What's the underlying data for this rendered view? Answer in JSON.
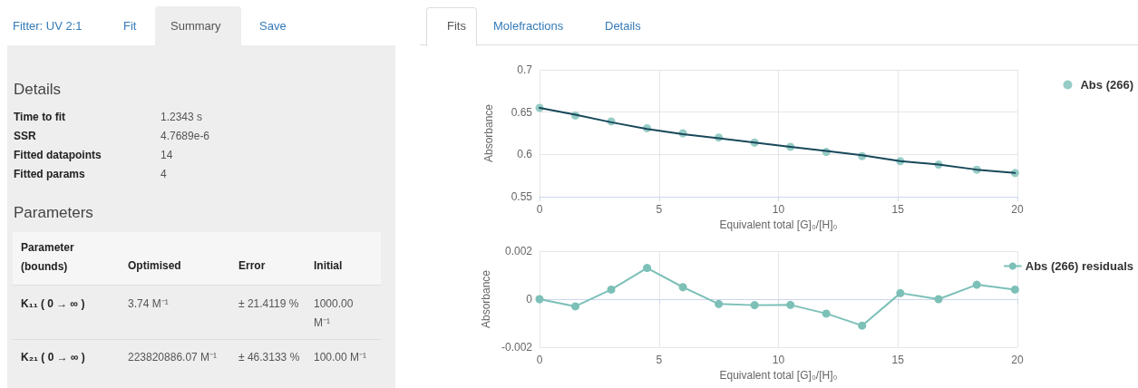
{
  "chart_data": [
    {
      "type": "other",
      "annotations": [
        "Fitter: UV 2:1",
        "Fit",
        "Summary",
        "Save",
        "Details",
        "Time to fit",
        "1.2343 s",
        "SSR",
        "4.7689e-6",
        "Fitted datapoints",
        "14",
        "Fitted params",
        "4",
        "Parameters",
        "Parameter (bounds)",
        "Optimised",
        "Error",
        "Initial",
        "K₁₁ ( 0 → ∞ )",
        "3.74 M⁻¹",
        "± 21.4119 %",
        "1000.00 M⁻¹",
        "K₂₁ ( 0 → ∞ )",
        "223820886.07 M⁻¹",
        "± 46.3133 %",
        "100.00 M⁻¹"
      ]
    },
    {
      "type": "other",
      "annotations": [
        "Fits",
        "Molefractions",
        "Details"
      ]
    },
    {
      "type": "scatter",
      "xlabel": "Equivalent total [G]₀/[H]₀",
      "ylabel": "Absorbance",
      "x": [
        0,
        1.5,
        3,
        4.5,
        6,
        7.5,
        9,
        10.5,
        12,
        13.5,
        15.1,
        16.7,
        18.3,
        19.9
      ],
      "xlim": [
        0,
        20
      ],
      "xticks": [
        0,
        5,
        10,
        15,
        20
      ],
      "ylim": [
        0.55,
        0.7
      ],
      "yticks": [
        0.55,
        0.6,
        0.65,
        0.7
      ],
      "grid": true,
      "legend": "top right",
      "marker": "circle",
      "series": [
        {
          "name": "Abs (266)",
          "color": "#7cc0b8",
          "values": [
            0.655,
            0.646,
            0.639,
            0.631,
            0.625,
            0.62,
            0.614,
            0.609,
            0.603,
            0.598,
            0.592,
            0.588,
            0.582,
            0.578
          ]
        },
        {
          "type": "line",
          "marker": "none",
          "color": "#18485a",
          "values": [
            0.655,
            0.647,
            0.638,
            0.63,
            0.624,
            0.619,
            0.614,
            0.609,
            0.604,
            0.599,
            0.592,
            0.588,
            0.582,
            0.578
          ]
        }
      ]
    },
    {
      "type": "line",
      "xlabel": "Equivalent total [G]₀/[H]₀",
      "ylabel": "Absorbance",
      "x": [
        0,
        1.5,
        3,
        4.5,
        6,
        7.5,
        9,
        10.5,
        12,
        13.5,
        15.1,
        16.7,
        18.3,
        19.9
      ],
      "xlim": [
        0,
        20
      ],
      "xticks": [
        0,
        5,
        10,
        15,
        20
      ],
      "ylim": [
        -0.002,
        0.002
      ],
      "yticks": [
        -0.002,
        0,
        0.002
      ],
      "grid": true,
      "legend": "top right",
      "marker": "circle",
      "series": [
        {
          "name": "Abs (266) residuals",
          "color": "#7cc0b8",
          "values": [
            0.0,
            -0.0003,
            0.0004,
            0.0013,
            0.0005,
            -0.0002,
            -0.00025,
            -0.00024,
            -0.0006,
            -0.0011,
            0.00025,
            0.0,
            0.0006,
            0.0004
          ]
        }
      ]
    }
  ]
}
